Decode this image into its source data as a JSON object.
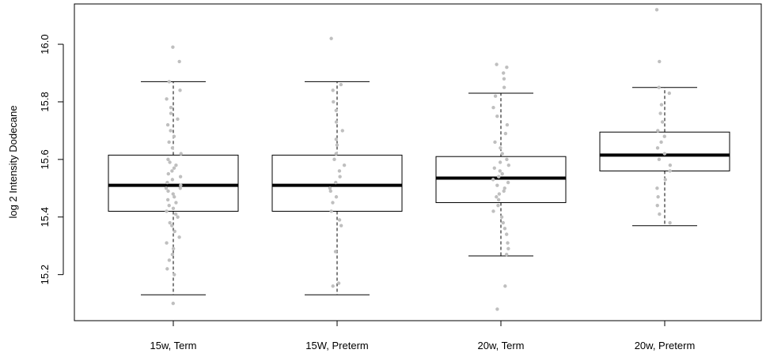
{
  "chart_data": {
    "type": "boxplot",
    "title": "",
    "xlabel": "",
    "ylabel": "log 2 Intensity Dodecane",
    "ylim": [
      15.04,
      16.14
    ],
    "yticks": [
      15.2,
      15.4,
      15.6,
      15.8,
      16.0
    ],
    "ytick_labels": [
      "15.2",
      "15.4",
      "15.6",
      "15.8",
      "16.0"
    ],
    "grid": false,
    "colors": {
      "box_stroke": "#000000",
      "median": "#000000",
      "points": "#bfbfbf"
    },
    "categories": [
      "15w, Term",
      "15W, Preterm",
      "20w, Term",
      "20w, Preterm"
    ],
    "boxes": [
      {
        "name": "15w, Term",
        "whisker_low": 15.13,
        "q1": 15.42,
        "median": 15.51,
        "q3": 15.615,
        "whisker_high": 15.87,
        "points": [
          15.1,
          15.2,
          15.22,
          15.25,
          15.27,
          15.29,
          15.31,
          15.33,
          15.35,
          15.37,
          15.38,
          15.4,
          15.41,
          15.42,
          15.43,
          15.44,
          15.45,
          15.46,
          15.47,
          15.48,
          15.49,
          15.5,
          15.5,
          15.51,
          15.52,
          15.53,
          15.54,
          15.55,
          15.56,
          15.57,
          15.58,
          15.59,
          15.6,
          15.62,
          15.64,
          15.66,
          15.68,
          15.7,
          15.72,
          15.74,
          15.76,
          15.78,
          15.81,
          15.84,
          15.87,
          15.94,
          15.99
        ]
      },
      {
        "name": "15W, Preterm",
        "whisker_low": 15.13,
        "q1": 15.42,
        "median": 15.51,
        "q3": 15.615,
        "whisker_high": 15.87,
        "points": [
          15.16,
          15.17,
          15.28,
          15.37,
          15.39,
          15.42,
          15.45,
          15.47,
          15.49,
          15.5,
          15.52,
          15.54,
          15.56,
          15.58,
          15.6,
          15.62,
          15.65,
          15.67,
          15.7,
          15.73,
          15.77,
          15.8,
          15.84,
          15.86,
          16.02
        ]
      },
      {
        "name": "20w, Term",
        "whisker_low": 15.265,
        "q1": 15.45,
        "median": 15.535,
        "q3": 15.61,
        "whisker_high": 15.83,
        "points": [
          15.08,
          15.16,
          15.27,
          15.29,
          15.31,
          15.34,
          15.36,
          15.38,
          15.4,
          15.42,
          15.44,
          15.46,
          15.47,
          15.48,
          15.49,
          15.5,
          15.51,
          15.52,
          15.53,
          15.54,
          15.55,
          15.56,
          15.57,
          15.58,
          15.59,
          15.6,
          15.62,
          15.64,
          15.66,
          15.69,
          15.72,
          15.75,
          15.78,
          15.82,
          15.85,
          15.88,
          15.9,
          15.92,
          15.93
        ]
      },
      {
        "name": "20w, Preterm",
        "whisker_low": 15.37,
        "q1": 15.56,
        "median": 15.615,
        "q3": 15.695,
        "whisker_high": 15.85,
        "points": [
          15.38,
          15.41,
          15.44,
          15.47,
          15.5,
          15.53,
          15.56,
          15.58,
          15.6,
          15.62,
          15.64,
          15.66,
          15.68,
          15.7,
          15.73,
          15.76,
          15.79,
          15.83,
          15.85,
          15.94,
          16.12
        ]
      }
    ]
  }
}
